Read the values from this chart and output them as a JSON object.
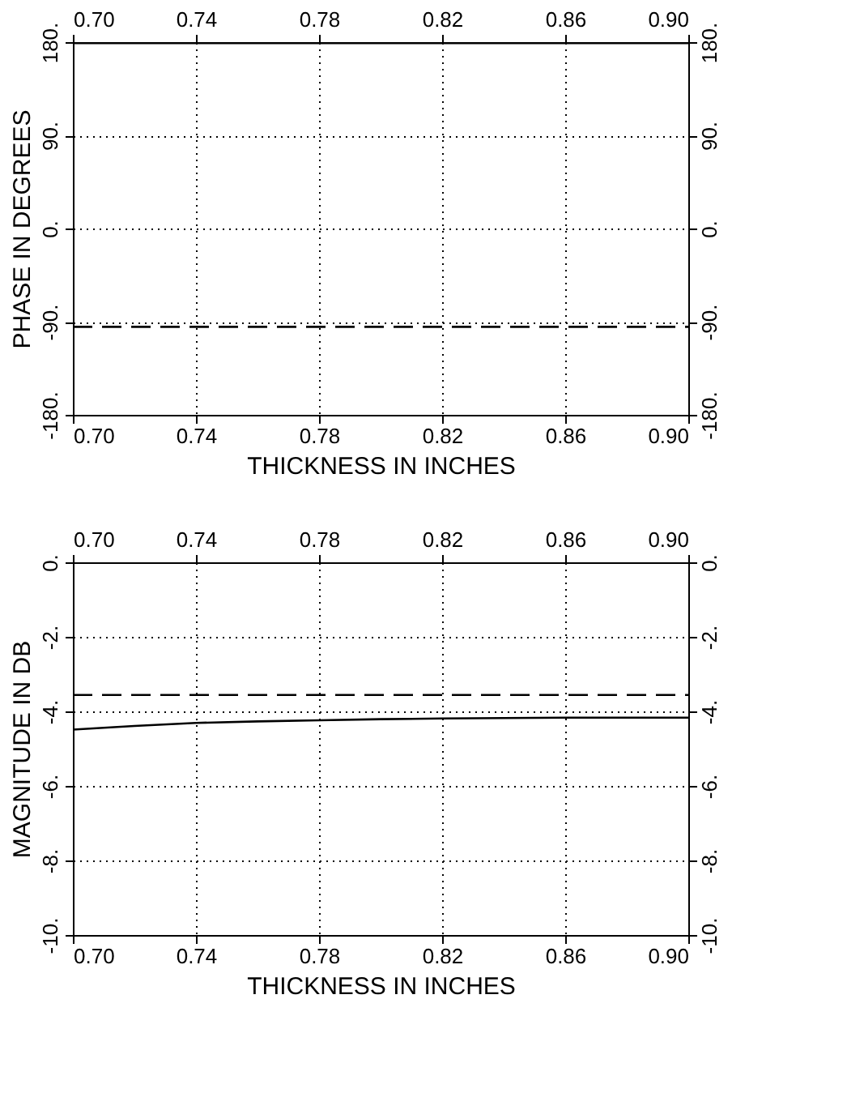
{
  "chart_data": [
    {
      "type": "line",
      "xlabel": "THICKNESS IN INCHES",
      "ylabel": "PHASE IN DEGREES",
      "x": [
        0.7,
        0.72,
        0.74,
        0.76,
        0.78,
        0.8,
        0.82,
        0.84,
        0.86,
        0.88,
        0.9
      ],
      "series": [
        {
          "color": "#000000",
          "line_style": "solid",
          "values": [
            179,
            179,
            179,
            179,
            179,
            179,
            179,
            179,
            179,
            179,
            179
          ]
        },
        {
          "color": "#000000",
          "line_style": "dashed",
          "values": [
            -95,
            -95,
            -95,
            -95,
            -95,
            -95,
            -95,
            -95,
            -95,
            -95,
            -95
          ]
        }
      ],
      "xlim": [
        0.7,
        0.9
      ],
      "xticks": [
        {
          "value": 0.7,
          "label": "0.70"
        },
        {
          "value": 0.74,
          "label": "0.74"
        },
        {
          "value": 0.78,
          "label": "0.78"
        },
        {
          "value": 0.82,
          "label": "0.82"
        },
        {
          "value": 0.86,
          "label": "0.86"
        },
        {
          "value": 0.9,
          "label": "0.90"
        }
      ],
      "x2lim": [
        0.7,
        0.9
      ],
      "x2ticks": [
        {
          "value": 0.7,
          "label": "0.70"
        },
        {
          "value": 0.74,
          "label": "0.74"
        },
        {
          "value": 0.78,
          "label": "0.78"
        },
        {
          "value": 0.82,
          "label": "0.82"
        },
        {
          "value": 0.86,
          "label": "0.86"
        },
        {
          "value": 0.9,
          "label": "0.90"
        }
      ],
      "ylim": [
        -180,
        180
      ],
      "yticks": [
        {
          "value": -180,
          "label": "-180."
        },
        {
          "value": -90,
          "label": "-90."
        },
        {
          "value": 0,
          "label": "0."
        },
        {
          "value": 90,
          "label": "90."
        },
        {
          "value": 180,
          "label": "180."
        }
      ],
      "y2lim": [
        -180,
        180
      ],
      "y2ticks": [
        {
          "value": -180,
          "label": "-180."
        },
        {
          "value": -90,
          "label": "-90."
        },
        {
          "value": 0,
          "label": "0."
        },
        {
          "value": 90,
          "label": "90."
        },
        {
          "value": 180,
          "label": "180."
        }
      ],
      "grid": true
    },
    {
      "type": "line",
      "xlabel": "THICKNESS IN INCHES",
      "ylabel": "MAGNITUDE IN DB",
      "x": [
        0.7,
        0.72,
        0.74,
        0.76,
        0.78,
        0.8,
        0.82,
        0.84,
        0.86,
        0.88,
        0.9
      ],
      "series": [
        {
          "color": "#000000",
          "line_style": "solid",
          "values": [
            -4.49,
            -4.39,
            -4.31,
            -4.27,
            -4.24,
            -4.21,
            -4.19,
            -4.18,
            -4.17,
            -4.17,
            -4.17
          ]
        },
        {
          "color": "#000000",
          "line_style": "dashed",
          "values": [
            -3.56,
            -3.56,
            -3.56,
            -3.56,
            -3.56,
            -3.56,
            -3.56,
            -3.56,
            -3.56,
            -3.56,
            -3.56
          ]
        }
      ],
      "xlim": [
        0.7,
        0.9
      ],
      "xticks": [
        {
          "value": 0.7,
          "label": "0.70"
        },
        {
          "value": 0.74,
          "label": "0.74"
        },
        {
          "value": 0.78,
          "label": "0.78"
        },
        {
          "value": 0.82,
          "label": "0.82"
        },
        {
          "value": 0.86,
          "label": "0.86"
        },
        {
          "value": 0.9,
          "label": "0.90"
        }
      ],
      "x2lim": [
        0.7,
        0.9
      ],
      "x2ticks": [
        {
          "value": 0.7,
          "label": "0.70"
        },
        {
          "value": 0.74,
          "label": "0.74"
        },
        {
          "value": 0.78,
          "label": "0.78"
        },
        {
          "value": 0.82,
          "label": "0.82"
        },
        {
          "value": 0.86,
          "label": "0.86"
        },
        {
          "value": 0.9,
          "label": "0.90"
        }
      ],
      "ylim": [
        -10,
        0
      ],
      "yticks": [
        {
          "value": -10,
          "label": "-10."
        },
        {
          "value": -8,
          "label": "-8."
        },
        {
          "value": -6,
          "label": "-6."
        },
        {
          "value": -4,
          "label": "-4."
        },
        {
          "value": -2,
          "label": "-2."
        },
        {
          "value": 0,
          "label": "0."
        }
      ],
      "y2lim": [
        -10,
        0
      ],
      "y2ticks": [
        {
          "value": -10,
          "label": "-10."
        },
        {
          "value": -8,
          "label": "-8."
        },
        {
          "value": -6,
          "label": "-6."
        },
        {
          "value": -4,
          "label": "-4."
        },
        {
          "value": -2,
          "label": "-2."
        },
        {
          "value": 0,
          "label": "0."
        }
      ],
      "grid": true
    }
  ]
}
